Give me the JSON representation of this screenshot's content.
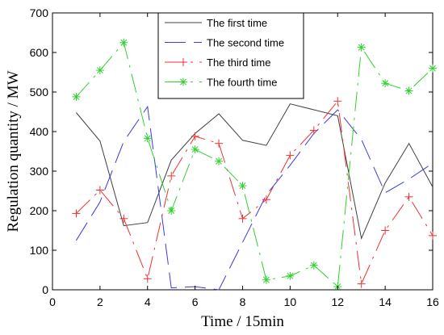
{
  "chart_data": {
    "type": "line",
    "xlabel": "Time / 15min",
    "ylabel": "Regulation quantity / MW",
    "xlim": [
      0,
      16
    ],
    "ylim": [
      0,
      700
    ],
    "xticks": [
      0,
      2,
      4,
      6,
      8,
      10,
      12,
      14,
      16
    ],
    "yticks": [
      0,
      100,
      200,
      300,
      400,
      500,
      600,
      700
    ],
    "grid": false,
    "legend_position": "top-center",
    "x": [
      1,
      2,
      3,
      4,
      5,
      6,
      7,
      8,
      9,
      10,
      11,
      12,
      13,
      14,
      15,
      16
    ],
    "series": [
      {
        "name": "The first time",
        "color": "#404040",
        "style": "solid",
        "marker": "none",
        "values": [
          448,
          376,
          162,
          170,
          328,
          395,
          445,
          378,
          365,
          470,
          455,
          440,
          130,
          270,
          370,
          260
        ]
      },
      {
        "name": "The second time",
        "color": "#3a3ae0",
        "style": "dash",
        "marker": "none",
        "values": [
          125,
          222,
          375,
          463,
          5,
          8,
          0,
          120,
          240,
          315,
          395,
          455,
          380,
          245,
          280,
          320
        ]
      },
      {
        "name": "The third time",
        "color": "#f03030",
        "style": "dashdot",
        "marker": "plus",
        "values": [
          193,
          252,
          180,
          28,
          288,
          388,
          370,
          180,
          228,
          340,
          403,
          477,
          15,
          150,
          235,
          137
        ]
      },
      {
        "name": "The fourth time",
        "color": "#30d030",
        "style": "dashdot",
        "marker": "star",
        "values": [
          488,
          555,
          625,
          383,
          200,
          355,
          325,
          263,
          25,
          35,
          62,
          8,
          613,
          522,
          503,
          560
        ]
      }
    ]
  }
}
